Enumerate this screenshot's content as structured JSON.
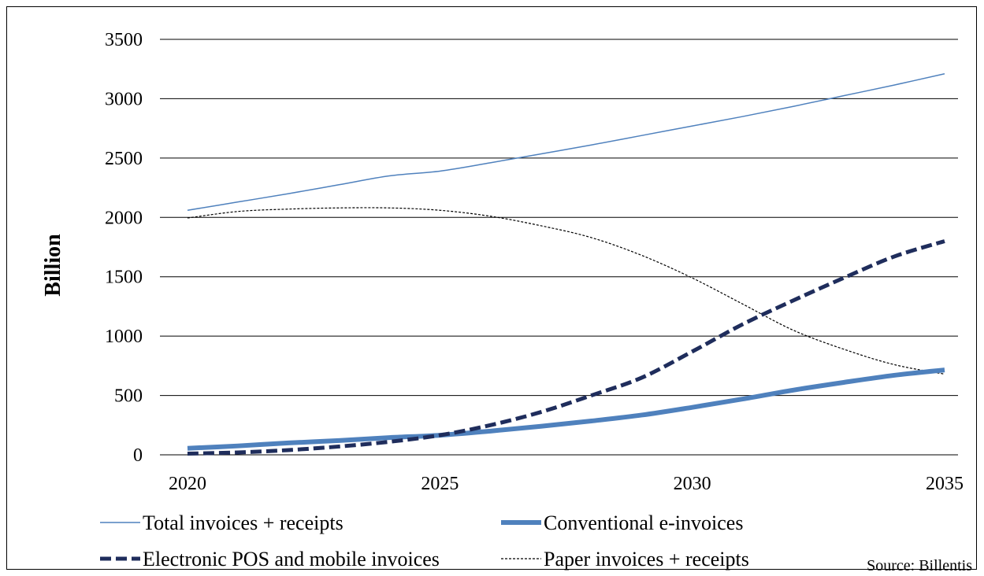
{
  "chart_data": {
    "type": "line",
    "title": "",
    "xlabel": "",
    "ylabel": "Billion",
    "xlim": [
      2020,
      2035
    ],
    "ylim": [
      0,
      3500
    ],
    "x_ticks": [
      2020,
      2025,
      2030,
      2035
    ],
    "y_ticks": [
      0,
      500,
      1000,
      1500,
      2000,
      2500,
      3000,
      3500
    ],
    "grid": "horizontal",
    "legend_position": "bottom",
    "source": "Source: Billentis",
    "series": [
      {
        "name": "Total invoices + receipts",
        "style": "thin-solid",
        "color": "#4f81bd",
        "x": [
          2020,
          2021,
          2022,
          2023,
          2024,
          2025,
          2026,
          2027,
          2028,
          2029,
          2030,
          2031,
          2032,
          2033,
          2034,
          2035
        ],
        "values": [
          2060,
          2130,
          2200,
          2275,
          2350,
          2390,
          2460,
          2535,
          2610,
          2690,
          2770,
          2850,
          2935,
          3025,
          3115,
          3210
        ]
      },
      {
        "name": "Conventional e-invoices",
        "style": "thick-solid",
        "color": "#4f81bd",
        "x": [
          2020,
          2021,
          2022,
          2023,
          2024,
          2025,
          2026,
          2027,
          2028,
          2029,
          2030,
          2031,
          2032,
          2033,
          2034,
          2035
        ],
        "values": [
          55,
          75,
          100,
          120,
          145,
          165,
          200,
          240,
          285,
          335,
          400,
          470,
          545,
          610,
          670,
          715
        ]
      },
      {
        "name": "Electronic POS and mobile invoices",
        "style": "thick-dashed",
        "color": "#1f2d5c",
        "x": [
          2020,
          2021,
          2022,
          2023,
          2024,
          2025,
          2026,
          2027,
          2028,
          2029,
          2030,
          2031,
          2032,
          2033,
          2034,
          2035
        ],
        "values": [
          10,
          20,
          40,
          70,
          110,
          165,
          250,
          360,
          500,
          650,
          870,
          1100,
          1300,
          1490,
          1670,
          1800
        ]
      },
      {
        "name": "Paper invoices + receipts",
        "style": "thin-dotted",
        "color": "#000000",
        "x": [
          2020,
          2021,
          2022,
          2023,
          2024,
          2025,
          2026,
          2027,
          2028,
          2029,
          2030,
          2031,
          2032,
          2033,
          2034,
          2035
        ],
        "values": [
          1995,
          2050,
          2070,
          2080,
          2080,
          2060,
          2010,
          1930,
          1830,
          1680,
          1490,
          1270,
          1050,
          890,
          760,
          680
        ]
      }
    ]
  }
}
